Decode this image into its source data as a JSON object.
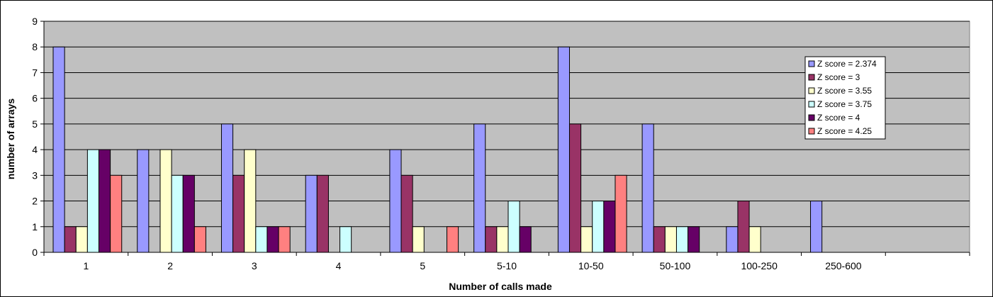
{
  "chart_data": {
    "type": "bar",
    "xlabel": "Number of calls made",
    "ylabel": "number of arrays",
    "ylim": [
      0,
      9
    ],
    "yticks": [
      0,
      1,
      2,
      3,
      4,
      5,
      6,
      7,
      8,
      9
    ],
    "grid": true,
    "legend_position": "top-right",
    "categories": [
      "1",
      "2",
      "3",
      "4",
      "5",
      "5-10",
      "10-50",
      "50-100",
      "100-250",
      "250-600",
      ""
    ],
    "series": [
      {
        "name": "Z score = 2.374",
        "color": "#9999ff",
        "values": [
          8,
          4,
          5,
          3,
          4,
          5,
          8,
          5,
          1,
          2,
          0
        ]
      },
      {
        "name": "Z score = 3",
        "color": "#993366",
        "values": [
          1,
          0,
          3,
          3,
          3,
          1,
          5,
          1,
          2,
          0,
          0
        ]
      },
      {
        "name": "Z score = 3.55",
        "color": "#ffffcc",
        "values": [
          1,
          4,
          4,
          0,
          1,
          1,
          1,
          1,
          1,
          0,
          0
        ]
      },
      {
        "name": "Z score = 3.75",
        "color": "#ccffff",
        "values": [
          4,
          3,
          1,
          1,
          0,
          2,
          2,
          1,
          0,
          0,
          0
        ]
      },
      {
        "name": "Z score = 4",
        "color": "#660066",
        "values": [
          4,
          3,
          1,
          0,
          0,
          1,
          2,
          1,
          0,
          0,
          0
        ]
      },
      {
        "name": "Z score = 4.25",
        "color": "#ff8080",
        "values": [
          3,
          1,
          1,
          0,
          1,
          0,
          3,
          0,
          0,
          0,
          0
        ]
      }
    ],
    "plot_background": "#c0c0c0"
  }
}
